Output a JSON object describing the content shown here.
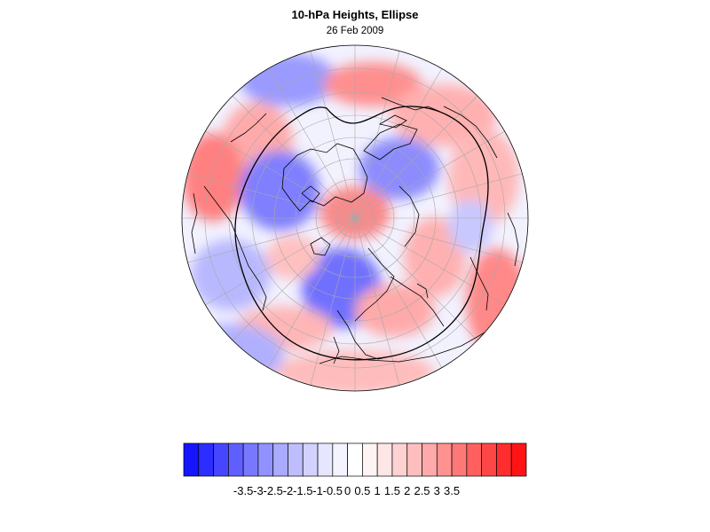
{
  "title": "10-hPa Heights, Ellipse",
  "subtitle": "26 Feb 2009",
  "colorbar": {
    "colors": [
      "#1515ff",
      "#2d2dff",
      "#4646ff",
      "#5f5fff",
      "#7878ff",
      "#9191ff",
      "#aaaaff",
      "#bebeff",
      "#d2d2ff",
      "#e6e6ff",
      "#f4f4ff",
      "#ffffff",
      "#fff4f4",
      "#ffe6e6",
      "#ffd2d2",
      "#ffbebe",
      "#ffaaaa",
      "#ff9191",
      "#ff7878",
      "#ff5f5f",
      "#ff4646",
      "#ff2d2d",
      "#ff1515"
    ],
    "ticks": [
      "-3.5",
      "-3",
      "-2.5",
      "-2",
      "-1.5",
      "-1",
      "-0.5",
      "0",
      "0.5",
      "1",
      "1.5",
      "2",
      "2.5",
      "3",
      "3.5"
    ]
  }
}
